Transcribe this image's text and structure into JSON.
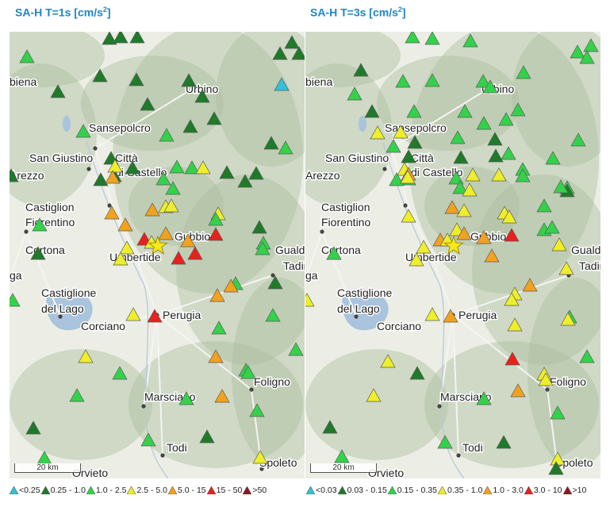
{
  "panels": [
    {
      "title_main": "SA-H T=1s [cm/s",
      "title_sup": "2",
      "title_end": "]",
      "scale_label": "20 km",
      "legend": [
        {
          "label": "<0.25",
          "color": "#33c1d8"
        },
        {
          "label": "0.25 - 1.0",
          "color": "#1f7a2a"
        },
        {
          "label": "1.0 - 2.5",
          "color": "#34d14a"
        },
        {
          "label": "2.5 - 5.0",
          "color": "#eeee2a"
        },
        {
          "label": "5.0 - 15",
          "color": "#f2a21f"
        },
        {
          "label": "15 - 50",
          "color": "#e8211c"
        },
        {
          "label": ">50",
          "color": "#8b1a1a"
        }
      ]
    },
    {
      "title_main": "SA-H T=3s [cm/s",
      "title_sup": "2",
      "title_end": "]",
      "scale_label": "20 km",
      "legend": [
        {
          "label": "<0.03",
          "color": "#33c1d8"
        },
        {
          "label": "0.03 - 0.15",
          "color": "#1f7a2a"
        },
        {
          "label": "0.15 - 0.35",
          "color": "#34d14a"
        },
        {
          "label": "0.35 - 1.0",
          "color": "#eeee2a"
        },
        {
          "label": "1.0 - 3.0",
          "color": "#f2a21f"
        },
        {
          "label": "3.0 - 10",
          "color": "#e8211c"
        },
        {
          "label": ">10",
          "color": "#8b1a1a"
        }
      ]
    }
  ],
  "places": [
    "biena",
    "Urbino",
    "Sansepolcro",
    "San Giustino",
    "Città",
    "di Castello",
    "Arezzo",
    "Castiglion",
    "Fiorentino",
    "Gubbio",
    "Cortona",
    "Umbertide",
    "Gualdo",
    "Tadino",
    "Castiglione",
    "del Lago",
    "Perugia",
    "Corciano",
    "Foligno",
    "Marsciano",
    "Todi",
    "Orvieto",
    "Spoleto",
    "ga"
  ],
  "colors": {
    "title": "#1f86c6",
    "lake": "#a9c4dc",
    "hill": "#aebfa0",
    "star": "#f7e81f"
  }
}
